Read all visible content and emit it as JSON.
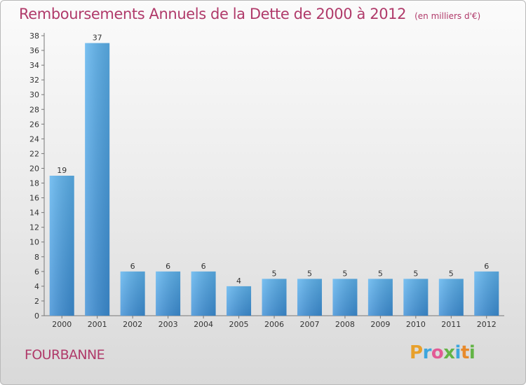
{
  "title": "Remboursements Annuels de la Dette de 2000 à 2012",
  "unit_note": "(en milliers d'€)",
  "commune": "FOURBANNE",
  "logo_letters": [
    "P",
    "r",
    "o",
    "x",
    "i",
    "t",
    "i"
  ],
  "logo_colors": [
    "#e8a02b",
    "#3da6dd",
    "#e25b95",
    "#63b446",
    "#3da6dd",
    "#e88a2b",
    "#63b446"
  ],
  "chart_data": {
    "type": "bar",
    "categories": [
      "2000",
      "2001",
      "2002",
      "2003",
      "2004",
      "2005",
      "2006",
      "2007",
      "2008",
      "2009",
      "2010",
      "2011",
      "2012"
    ],
    "values": [
      19,
      37,
      6,
      6,
      6,
      4,
      5,
      5,
      5,
      5,
      5,
      5,
      6
    ],
    "ylim": [
      0,
      38
    ],
    "yticks": [
      0,
      2,
      4,
      6,
      8,
      10,
      12,
      14,
      16,
      18,
      20,
      22,
      24,
      26,
      28,
      30,
      32,
      34,
      36,
      38
    ],
    "grid": false,
    "bar_color": "#3d8fd6",
    "bar_color_light": "#5db3ee"
  }
}
